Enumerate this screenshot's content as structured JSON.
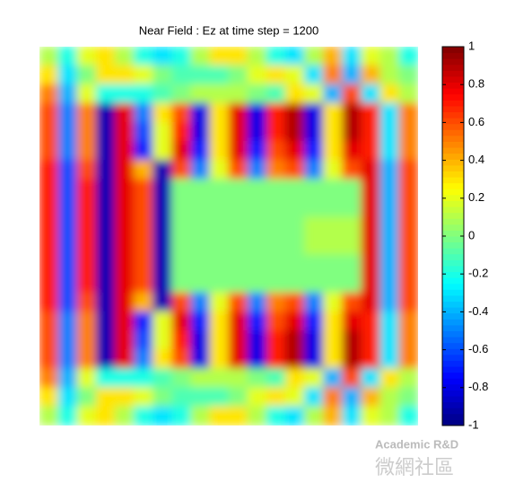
{
  "chart_data": {
    "type": "heatmap",
    "title": "Near Field : Ez at time step = 1200",
    "colormap": "jet",
    "zlim": [
      -1,
      1
    ],
    "zticks": [
      1,
      0.8,
      0.6,
      0.4,
      0.2,
      0,
      -0.2,
      -0.4,
      -0.6,
      -0.8,
      -1
    ],
    "z": [
      [
        0.1,
        -0.2,
        0.2,
        0.3,
        0.1,
        -0.2,
        -0.3,
        -0.2,
        0.1,
        0.3,
        0.3,
        0.1,
        -0.2,
        -0.3,
        0.1,
        0.4,
        -0.3,
        0.2,
        0.1,
        -0.2
      ],
      [
        0.3,
        -0.3,
        0,
        0.3,
        0.3,
        0.2,
        0,
        -0.1,
        -0.1,
        -0.1,
        0,
        0.2,
        0.3,
        0.2,
        -0.3,
        0.5,
        -0.4,
        0.4,
        0.1,
        0
      ],
      [
        0.5,
        -0.4,
        0.2,
        -0.2,
        -0.2,
        -0.2,
        -0.1,
        0,
        0.1,
        0.1,
        0.1,
        0,
        -0.1,
        0.3,
        0.2,
        -0.4,
        0.6,
        -0.3,
        0.3,
        0.1
      ],
      [
        0.6,
        -0.5,
        0.5,
        -0.9,
        0.8,
        -0.5,
        0.3,
        0.6,
        -0.8,
        0.3,
        0.8,
        -0.8,
        0.7,
        0.9,
        -0.8,
        0.3,
        0.9,
        0.7,
        -0.3,
        0.5
      ],
      [
        0.6,
        -0.5,
        0.5,
        -0.9,
        0.8,
        -0.6,
        0.2,
        0.7,
        -0.8,
        0.3,
        0.8,
        -0.8,
        0.7,
        0.9,
        -0.8,
        0.3,
        0.9,
        0.7,
        -0.3,
        0.5
      ],
      [
        0.6,
        -0.5,
        0.5,
        -0.9,
        0.8,
        -0.7,
        0.2,
        0.8,
        -0.7,
        0.3,
        0.8,
        -0.7,
        0.6,
        0.8,
        -0.7,
        0.3,
        0.8,
        0.7,
        -0.3,
        0.5
      ],
      [
        0.7,
        -0.6,
        0.6,
        -0.9,
        0.8,
        0.4,
        -0.9,
        0.6,
        -0.5,
        0.2,
        0.6,
        -0.5,
        0.5,
        0.6,
        -0.5,
        0.2,
        0.6,
        0.8,
        -0.4,
        0.6
      ],
      [
        0.7,
        -0.6,
        0.7,
        -0.9,
        0.8,
        0.6,
        -0.9,
        0,
        0,
        0,
        0,
        0,
        0,
        0,
        0,
        0,
        0,
        0.8,
        -0.4,
        0.6
      ],
      [
        0.7,
        -0.6,
        0.7,
        -0.9,
        0.8,
        0.6,
        -0.9,
        0,
        0,
        0,
        0,
        0,
        0,
        0,
        0,
        0,
        0,
        0.8,
        -0.4,
        0.6
      ],
      [
        0.7,
        -0.6,
        0.7,
        -0.9,
        0.8,
        0.6,
        -0.9,
        0,
        0,
        0,
        0,
        0,
        0,
        0,
        0.1,
        0.1,
        0.1,
        0.8,
        -0.4,
        0.6
      ],
      [
        0.7,
        -0.6,
        0.7,
        -0.9,
        0.8,
        0.6,
        -0.9,
        0,
        0,
        0,
        0,
        0,
        0,
        0,
        0.1,
        0.1,
        0.1,
        0.8,
        -0.4,
        0.6
      ],
      [
        0.7,
        -0.6,
        0.7,
        -0.9,
        0.8,
        0.6,
        -0.9,
        0,
        0,
        0,
        0,
        0,
        0,
        0,
        0,
        0,
        0,
        0.8,
        -0.4,
        0.6
      ],
      [
        0.7,
        -0.6,
        0.7,
        -0.9,
        0.8,
        0.6,
        -0.9,
        0,
        0,
        0,
        0,
        0,
        0,
        0,
        0,
        0,
        0,
        0.8,
        -0.4,
        0.6
      ],
      [
        0.7,
        -0.6,
        0.6,
        -0.9,
        0.8,
        0.4,
        -0.9,
        0.6,
        -0.5,
        0.2,
        0.6,
        -0.5,
        0.5,
        0.6,
        -0.5,
        0.2,
        0.6,
        0.8,
        -0.4,
        0.6
      ],
      [
        0.6,
        -0.5,
        0.5,
        -0.9,
        0.8,
        -0.7,
        0.2,
        0.8,
        -0.7,
        0.3,
        0.8,
        -0.7,
        0.6,
        0.8,
        -0.7,
        0.3,
        0.8,
        0.7,
        -0.3,
        0.5
      ],
      [
        0.6,
        -0.5,
        0.5,
        -0.9,
        0.8,
        -0.6,
        0.2,
        0.7,
        -0.8,
        0.3,
        0.8,
        -0.8,
        0.7,
        0.9,
        -0.8,
        0.3,
        0.9,
        0.7,
        -0.3,
        0.5
      ],
      [
        0.6,
        -0.5,
        0.5,
        -0.9,
        0.8,
        -0.5,
        0.3,
        0.6,
        -0.8,
        0.3,
        0.8,
        -0.8,
        0.7,
        0.9,
        -0.8,
        0.3,
        0.9,
        0.7,
        -0.3,
        0.5
      ],
      [
        0.5,
        -0.4,
        0.2,
        -0.2,
        -0.2,
        -0.2,
        -0.1,
        0,
        0.1,
        0.1,
        0.1,
        0,
        -0.1,
        0.3,
        0.2,
        -0.4,
        0.6,
        -0.3,
        0.3,
        0.1
      ],
      [
        0.3,
        -0.3,
        0,
        0.3,
        0.3,
        0.2,
        0,
        -0.1,
        -0.1,
        -0.1,
        0,
        0.2,
        0.3,
        0.2,
        -0.3,
        0.5,
        -0.4,
        0.4,
        0.1,
        0
      ],
      [
        0.1,
        -0.2,
        0.2,
        0.3,
        0.1,
        -0.2,
        -0.3,
        -0.2,
        0.1,
        0.3,
        0.3,
        0.1,
        -0.2,
        -0.3,
        0.1,
        0.4,
        -0.3,
        0.2,
        0.1,
        -0.2
      ]
    ],
    "watermark": [
      "Academic R&D",
      "微網社區"
    ]
  }
}
